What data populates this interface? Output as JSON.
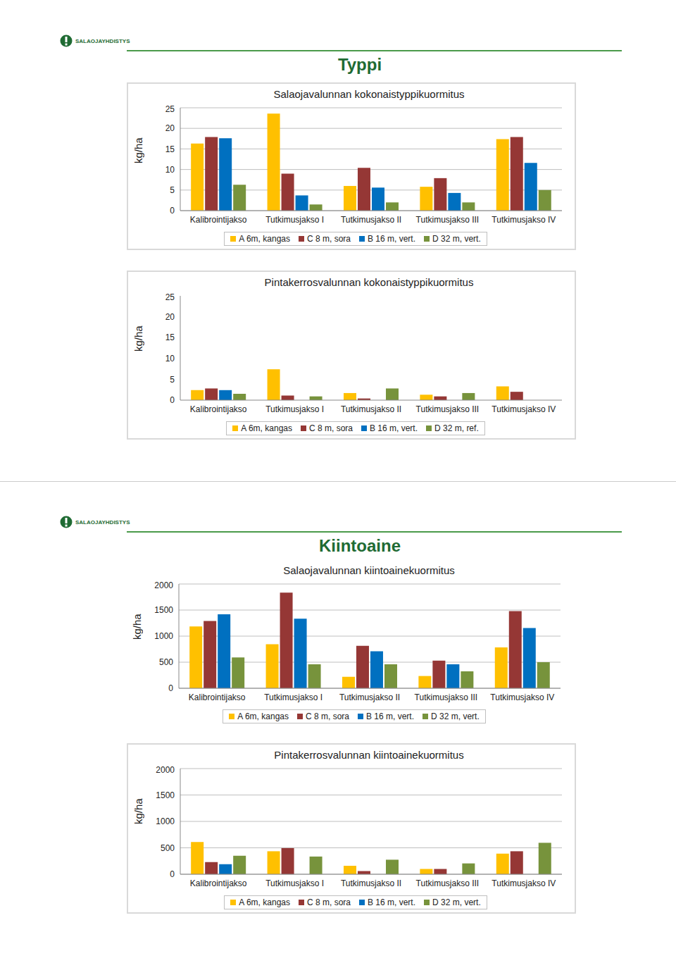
{
  "pages": [
    {
      "logo": "SALAOJAYHDISTYS",
      "heading": "Typpi"
    },
    {
      "logo": "SALAOJAYHDISTYS",
      "heading": "Kiintoaine"
    }
  ],
  "chart_data": [
    {
      "type": "bar",
      "title": "Salaojavalunnan kokonaistyppikuormitus",
      "y_label": "kg/ha",
      "categories": [
        "Kalibrointijakso",
        "Tutkimusjakso I",
        "Tutkimusjakso II",
        "Tutkimusjakso III",
        "Tutkimusjakso IV"
      ],
      "series": [
        {
          "name": "A 6m, kangas",
          "color": "#FFC000",
          "values": [
            16.3,
            23.6,
            6.0,
            5.8,
            17.4
          ]
        },
        {
          "name": "C 8 m, sora",
          "color": "#953735",
          "values": [
            17.9,
            9.0,
            10.4,
            7.9,
            17.9
          ]
        },
        {
          "name": "B 16 m, vert.",
          "color": "#0070C0",
          "values": [
            17.6,
            3.7,
            5.6,
            4.3,
            11.6
          ]
        },
        {
          "name": "D 32 m, vert.",
          "color": "#77933C",
          "values": [
            6.3,
            1.5,
            2.0,
            2.0,
            5.0
          ]
        }
      ],
      "ylim": [
        0,
        25
      ],
      "yticks": [
        0,
        5,
        10,
        15,
        20,
        25
      ],
      "grid": true,
      "legend": "bottom"
    },
    {
      "type": "bar",
      "title": "Pintakerrosvalunnan kokonaistyppikuormitus",
      "y_label": "kg/ha",
      "categories": [
        "Kalibrointijakso",
        "Tutkimusjakso I",
        "Tutkimusjakso II",
        "Tutkimusjakso III",
        "Tutkimusjakso IV"
      ],
      "series": [
        {
          "name": "A 6m, kangas",
          "color": "#FFC000",
          "values": [
            2.4,
            7.4,
            1.7,
            1.3,
            3.3
          ]
        },
        {
          "name": "C 8 m, sora",
          "color": "#953735",
          "values": [
            2.8,
            1.1,
            0.4,
            0.9,
            2.0
          ]
        },
        {
          "name": "B 16 m, vert.",
          "color": "#0070C0",
          "values": [
            2.4,
            null,
            null,
            null,
            null
          ]
        },
        {
          "name": "D 32 m, ref.",
          "color": "#77933C",
          "values": [
            1.5,
            0.9,
            2.8,
            1.7,
            null
          ]
        }
      ],
      "ylim": [
        0,
        25
      ],
      "yticks": [
        0,
        5,
        10,
        15,
        20,
        25
      ],
      "grid": false,
      "legend": "bottom"
    },
    {
      "type": "bar",
      "title": "Salaojavalunnan kiintoainekuormitus",
      "y_label": "kg/ha",
      "categories": [
        "Kalibrointijakso",
        "Tutkimusjakso I",
        "Tutkimusjakso II",
        "Tutkimusjakso III",
        "Tutkimusjakso IV"
      ],
      "series": [
        {
          "name": "A 6m, kangas",
          "color": "#FFC000",
          "values": [
            1185,
            845,
            220,
            235,
            785
          ]
        },
        {
          "name": "C 8 m, sora",
          "color": "#953735",
          "values": [
            1290,
            1835,
            815,
            530,
            1480
          ]
        },
        {
          "name": "B 16 m, vert.",
          "color": "#0070C0",
          "values": [
            1420,
            1335,
            710,
            460,
            1155
          ]
        },
        {
          "name": "D 32 m, vert.",
          "color": "#77933C",
          "values": [
            590,
            460,
            460,
            325,
            500
          ]
        }
      ],
      "ylim": [
        0,
        2000
      ],
      "yticks": [
        0,
        500,
        1000,
        1500,
        2000
      ],
      "grid": true,
      "legend": "bottom"
    },
    {
      "type": "bar",
      "title": "Pintakerrosvalunnan kiintoainekuormitus",
      "y_label": "kg/ha",
      "categories": [
        "Kalibrointijakso",
        "Tutkimusjakso I",
        "Tutkimusjakso II",
        "Tutkimusjakso III",
        "Tutkimusjakso IV"
      ],
      "series": [
        {
          "name": "A 6m, kangas",
          "color": "#FFC000",
          "values": [
            610,
            435,
            160,
            100,
            390
          ]
        },
        {
          "name": "C 8 m, sora",
          "color": "#953735",
          "values": [
            230,
            495,
            60,
            100,
            435
          ]
        },
        {
          "name": "B 16 m, vert.",
          "color": "#0070C0",
          "values": [
            190,
            null,
            null,
            null,
            null
          ]
        },
        {
          "name": "D 32 m, vert.",
          "color": "#77933C",
          "values": [
            350,
            335,
            275,
            205,
            595
          ]
        }
      ],
      "ylim": [
        0,
        2000
      ],
      "yticks": [
        0,
        500,
        1000,
        1500,
        2000
      ],
      "grid": true,
      "legend": "bottom"
    }
  ]
}
